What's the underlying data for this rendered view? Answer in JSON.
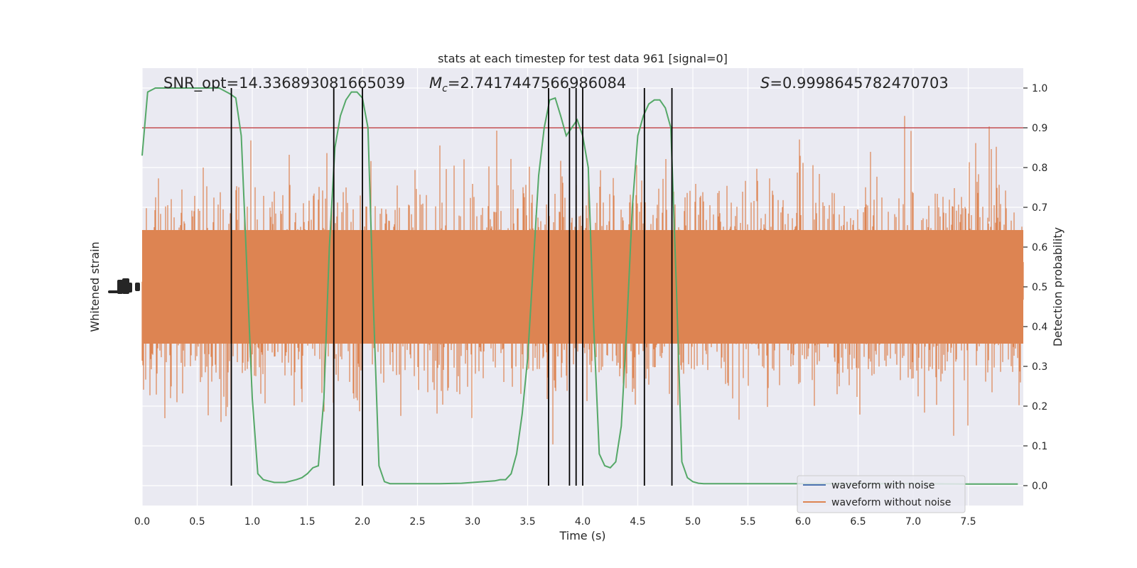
{
  "chart_data": {
    "type": "line",
    "title": "stats at each timestep for test data 961 [signal=0]",
    "xlabel": "Time (s)",
    "ylabel_left": "Whitened strain",
    "ylabel_right": "Detection probability",
    "xlim": [
      0,
      8
    ],
    "ylim_right": [
      -0.05,
      1.05
    ],
    "x_ticks": [
      "0.0",
      "0.5",
      "1.0",
      "1.5",
      "2.0",
      "2.5",
      "3.0",
      "3.5",
      "4.0",
      "4.5",
      "5.0",
      "5.5",
      "6.0",
      "6.5",
      "7.0",
      "7.5"
    ],
    "x_tick_values": [
      0,
      0.5,
      1,
      1.5,
      2,
      2.5,
      3,
      3.5,
      4,
      4.5,
      5,
      5.5,
      6,
      6.5,
      7,
      7.5
    ],
    "y_right_ticks": [
      "0.0",
      "0.1",
      "0.2",
      "0.3",
      "0.4",
      "0.5",
      "0.6",
      "0.7",
      "0.8",
      "0.9",
      "1.0"
    ],
    "y_right_tick_values": [
      0,
      0.1,
      0.2,
      0.3,
      0.4,
      0.5,
      0.6,
      0.7,
      0.8,
      0.9,
      1.0
    ],
    "annotations": {
      "snr": "SNR_opt=14.336893081665039",
      "mc_symbol": "M",
      "mc_sub": "c",
      "mc_value": "=2.7417447566986084",
      "s_symbol": "S",
      "s_value": "=0.9998645782470703"
    },
    "threshold": 0.9,
    "detection_times": [
      0.81,
      1.74,
      2.0,
      3.69,
      3.88,
      3.94,
      4.0,
      4.56,
      4.81
    ],
    "probability_series": {
      "name": "",
      "x": [
        0,
        0.05,
        0.12,
        0.2,
        0.3,
        0.4,
        0.5,
        0.6,
        0.7,
        0.8,
        0.85,
        0.9,
        0.95,
        1.0,
        1.05,
        1.1,
        1.2,
        1.3,
        1.4,
        1.45,
        1.5,
        1.55,
        1.6,
        1.65,
        1.7,
        1.75,
        1.8,
        1.85,
        1.9,
        1.95,
        2.0,
        2.05,
        2.1,
        2.15,
        2.2,
        2.25,
        2.3,
        2.5,
        2.7,
        2.9,
        3.1,
        3.2,
        3.25,
        3.3,
        3.35,
        3.4,
        3.45,
        3.5,
        3.55,
        3.6,
        3.65,
        3.7,
        3.75,
        3.8,
        3.85,
        3.9,
        3.95,
        4.0,
        4.05,
        4.1,
        4.15,
        4.2,
        4.25,
        4.3,
        4.35,
        4.4,
        4.45,
        4.5,
        4.55,
        4.6,
        4.65,
        4.7,
        4.75,
        4.8,
        4.85,
        4.9,
        4.95,
        5.0,
        5.05,
        5.1,
        5.3,
        5.5,
        5.7,
        6.0,
        6.5,
        7.0,
        7.5,
        7.95
      ],
      "y": [
        0.83,
        0.99,
        1.0,
        1.0,
        1.0,
        1.0,
        1.0,
        1.0,
        1.0,
        0.985,
        0.975,
        0.88,
        0.55,
        0.22,
        0.03,
        0.015,
        0.008,
        0.008,
        0.015,
        0.02,
        0.03,
        0.045,
        0.05,
        0.22,
        0.6,
        0.85,
        0.93,
        0.97,
        0.99,
        0.99,
        0.975,
        0.9,
        0.45,
        0.05,
        0.01,
        0.005,
        0.005,
        0.005,
        0.005,
        0.006,
        0.01,
        0.012,
        0.015,
        0.015,
        0.03,
        0.08,
        0.18,
        0.32,
        0.55,
        0.78,
        0.9,
        0.97,
        0.975,
        0.93,
        0.88,
        0.9,
        0.92,
        0.88,
        0.8,
        0.4,
        0.08,
        0.05,
        0.045,
        0.06,
        0.15,
        0.4,
        0.7,
        0.88,
        0.93,
        0.96,
        0.97,
        0.97,
        0.95,
        0.9,
        0.5,
        0.06,
        0.02,
        0.01,
        0.006,
        0.005,
        0.005,
        0.005,
        0.005,
        0.005,
        0.005,
        0.005,
        0.004,
        0.004
      ]
    },
    "legend": {
      "placement": "lower-right",
      "entries": [
        {
          "label": "waveform with noise",
          "color": "#4c72b0"
        },
        {
          "label": "waveform without noise",
          "color": "#dd8452"
        }
      ]
    },
    "colors": {
      "background": "#eaeaf2",
      "grid": "#ffffff",
      "noise_wave": "#dd8452",
      "probability": "#55a868",
      "threshold": "#c44e52",
      "detections": "#000000"
    },
    "grid": true
  }
}
